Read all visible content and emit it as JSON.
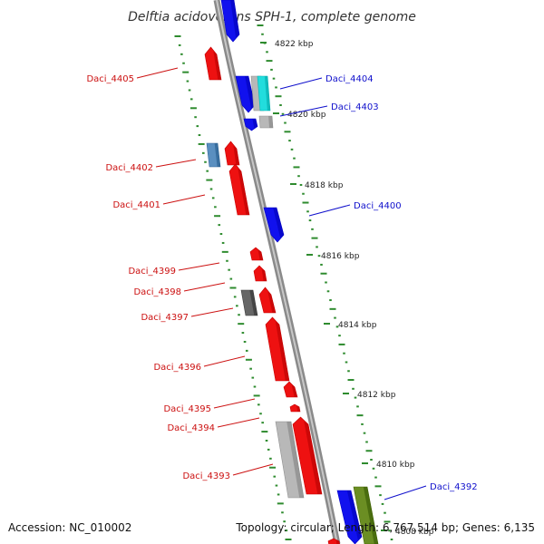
{
  "title": "Delftia acidovorans SPH-1, complete genome",
  "footer": {
    "accession": "Accession: NC_010002",
    "topology": "Topology: circular; Length: 6,767,514 bp; Genes: 6,135"
  },
  "colors": {
    "backbone": "#7a7a7a",
    "tick": "#2e8b2e",
    "forward_label": "#1010cc",
    "reverse_label": "#cc1111",
    "red_gene": "#ee1111",
    "blue_gene": "#1111ee",
    "cyan_gene": "#22dddd",
    "gray_gene": "#b8b8b8",
    "darkgray_gene": "#666666",
    "steelblue_gene": "#5a8fc0",
    "olive_gene": "#6b8e23"
  },
  "kbp_labels": [
    "4822 kbp",
    "4820 kbp",
    "4818 kbp",
    "4816 kbp",
    "4814 kbp",
    "4812 kbp",
    "4810 kbp",
    "4808 kbp"
  ],
  "gene_labels": [
    {
      "text": "Daci_4405",
      "strand": "reverse"
    },
    {
      "text": "Daci_4404",
      "strand": "forward"
    },
    {
      "text": "Daci_4403",
      "strand": "forward"
    },
    {
      "text": "Daci_4402",
      "strand": "reverse"
    },
    {
      "text": "Daci_4401",
      "strand": "reverse"
    },
    {
      "text": "Daci_4400",
      "strand": "forward"
    },
    {
      "text": "Daci_4399",
      "strand": "reverse"
    },
    {
      "text": "Daci_4398",
      "strand": "reverse"
    },
    {
      "text": "Daci_4397",
      "strand": "reverse"
    },
    {
      "text": "Daci_4396",
      "strand": "reverse"
    },
    {
      "text": "Daci_4395",
      "strand": "reverse"
    },
    {
      "text": "Daci_4394",
      "strand": "reverse"
    },
    {
      "text": "Daci_4393",
      "strand": "reverse"
    },
    {
      "text": "Daci_4392",
      "strand": "forward"
    }
  ]
}
